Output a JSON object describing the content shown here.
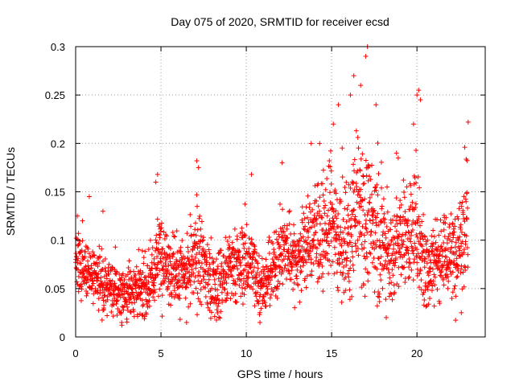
{
  "chart_data": {
    "type": "scatter",
    "title": "Day 075 of 2020, SRMTID for receiver ecsd",
    "xlabel": "GPS time / hours",
    "ylabel": "SRMTID / TECUs",
    "xlim": [
      0,
      24
    ],
    "ylim": [
      0,
      0.3
    ],
    "grid": true,
    "marker": "+",
    "color": "#ff0000",
    "x_ticks": [
      0,
      5,
      10,
      15,
      20
    ],
    "x_tick_labels": [
      "0",
      "5",
      "10",
      "15",
      "20"
    ],
    "y_ticks": [
      0,
      0.05,
      0.1,
      0.15,
      0.2,
      0.25,
      0.3
    ],
    "y_tick_labels": [
      "0",
      "0.05",
      "0.1",
      "0.15",
      "0.2",
      "0.25",
      "0.3"
    ],
    "series": [
      {
        "name": "SRMTID",
        "profile_description": "approximate mean level per hour (data units)",
        "profile_x": [
          0,
          0.5,
          1,
          1.5,
          2,
          2.5,
          3,
          3.5,
          4,
          4.5,
          5,
          5.5,
          6,
          6.5,
          7,
          7.5,
          8,
          8.5,
          9,
          9.5,
          10,
          10.5,
          11,
          11.5,
          12,
          12.5,
          13,
          13.5,
          14,
          14.5,
          15,
          15.5,
          16,
          16.5,
          17,
          17.5,
          18,
          18.5,
          19,
          19.5,
          20,
          20.5,
          21,
          21.5,
          22,
          22.5,
          23
        ],
        "profile_y": [
          0.085,
          0.07,
          0.06,
          0.055,
          0.05,
          0.045,
          0.045,
          0.05,
          0.05,
          0.06,
          0.09,
          0.07,
          0.065,
          0.06,
          0.08,
          0.075,
          0.05,
          0.06,
          0.07,
          0.07,
          0.08,
          0.07,
          0.05,
          0.065,
          0.09,
          0.085,
          0.08,
          0.095,
          0.11,
          0.1,
          0.12,
          0.09,
          0.1,
          0.14,
          0.12,
          0.11,
          0.1,
          0.075,
          0.1,
          0.1,
          0.12,
          0.07,
          0.08,
          0.09,
          0.08,
          0.1,
          0.12
        ],
        "spread_y": [
          0.025,
          0.02,
          0.02,
          0.02,
          0.018,
          0.017,
          0.018,
          0.02,
          0.02,
          0.025,
          0.03,
          0.025,
          0.025,
          0.025,
          0.03,
          0.03,
          0.025,
          0.025,
          0.025,
          0.025,
          0.03,
          0.025,
          0.02,
          0.022,
          0.025,
          0.025,
          0.025,
          0.03,
          0.035,
          0.035,
          0.04,
          0.035,
          0.04,
          0.05,
          0.045,
          0.04,
          0.04,
          0.03,
          0.035,
          0.035,
          0.045,
          0.03,
          0.03,
          0.03,
          0.03,
          0.035,
          0.045
        ],
        "notable_points": [
          {
            "x": 0.4,
            "y": 0.12
          },
          {
            "x": 0.8,
            "y": 0.145
          },
          {
            "x": 1.6,
            "y": 0.13
          },
          {
            "x": 4.7,
            "y": 0.16
          },
          {
            "x": 4.8,
            "y": 0.168
          },
          {
            "x": 7.1,
            "y": 0.182
          },
          {
            "x": 7.2,
            "y": 0.175
          },
          {
            "x": 10.3,
            "y": 0.168
          },
          {
            "x": 12.1,
            "y": 0.18
          },
          {
            "x": 13.8,
            "y": 0.2
          },
          {
            "x": 14.3,
            "y": 0.2
          },
          {
            "x": 15.1,
            "y": 0.22
          },
          {
            "x": 15.4,
            "y": 0.24
          },
          {
            "x": 16.1,
            "y": 0.25
          },
          {
            "x": 16.3,
            "y": 0.27
          },
          {
            "x": 16.7,
            "y": 0.26
          },
          {
            "x": 17.0,
            "y": 0.29
          },
          {
            "x": 17.1,
            "y": 0.3
          },
          {
            "x": 17.6,
            "y": 0.24
          },
          {
            "x": 18.8,
            "y": 0.19
          },
          {
            "x": 18.9,
            "y": 0.185
          },
          {
            "x": 19.8,
            "y": 0.22
          },
          {
            "x": 20.0,
            "y": 0.25
          },
          {
            "x": 20.1,
            "y": 0.255
          },
          {
            "x": 20.2,
            "y": 0.245
          },
          {
            "x": 22.8,
            "y": 0.196
          },
          {
            "x": 23.0,
            "y": 0.222
          },
          {
            "x": 22.6,
            "y": 0.025
          },
          {
            "x": 10.8,
            "y": 0.015
          },
          {
            "x": 2.7,
            "y": 0.015
          },
          {
            "x": 6.5,
            "y": 0.015
          },
          {
            "x": 0.1,
            "y": 0.125
          },
          {
            "x": 18.2,
            "y": 0.02
          }
        ]
      }
    ]
  }
}
